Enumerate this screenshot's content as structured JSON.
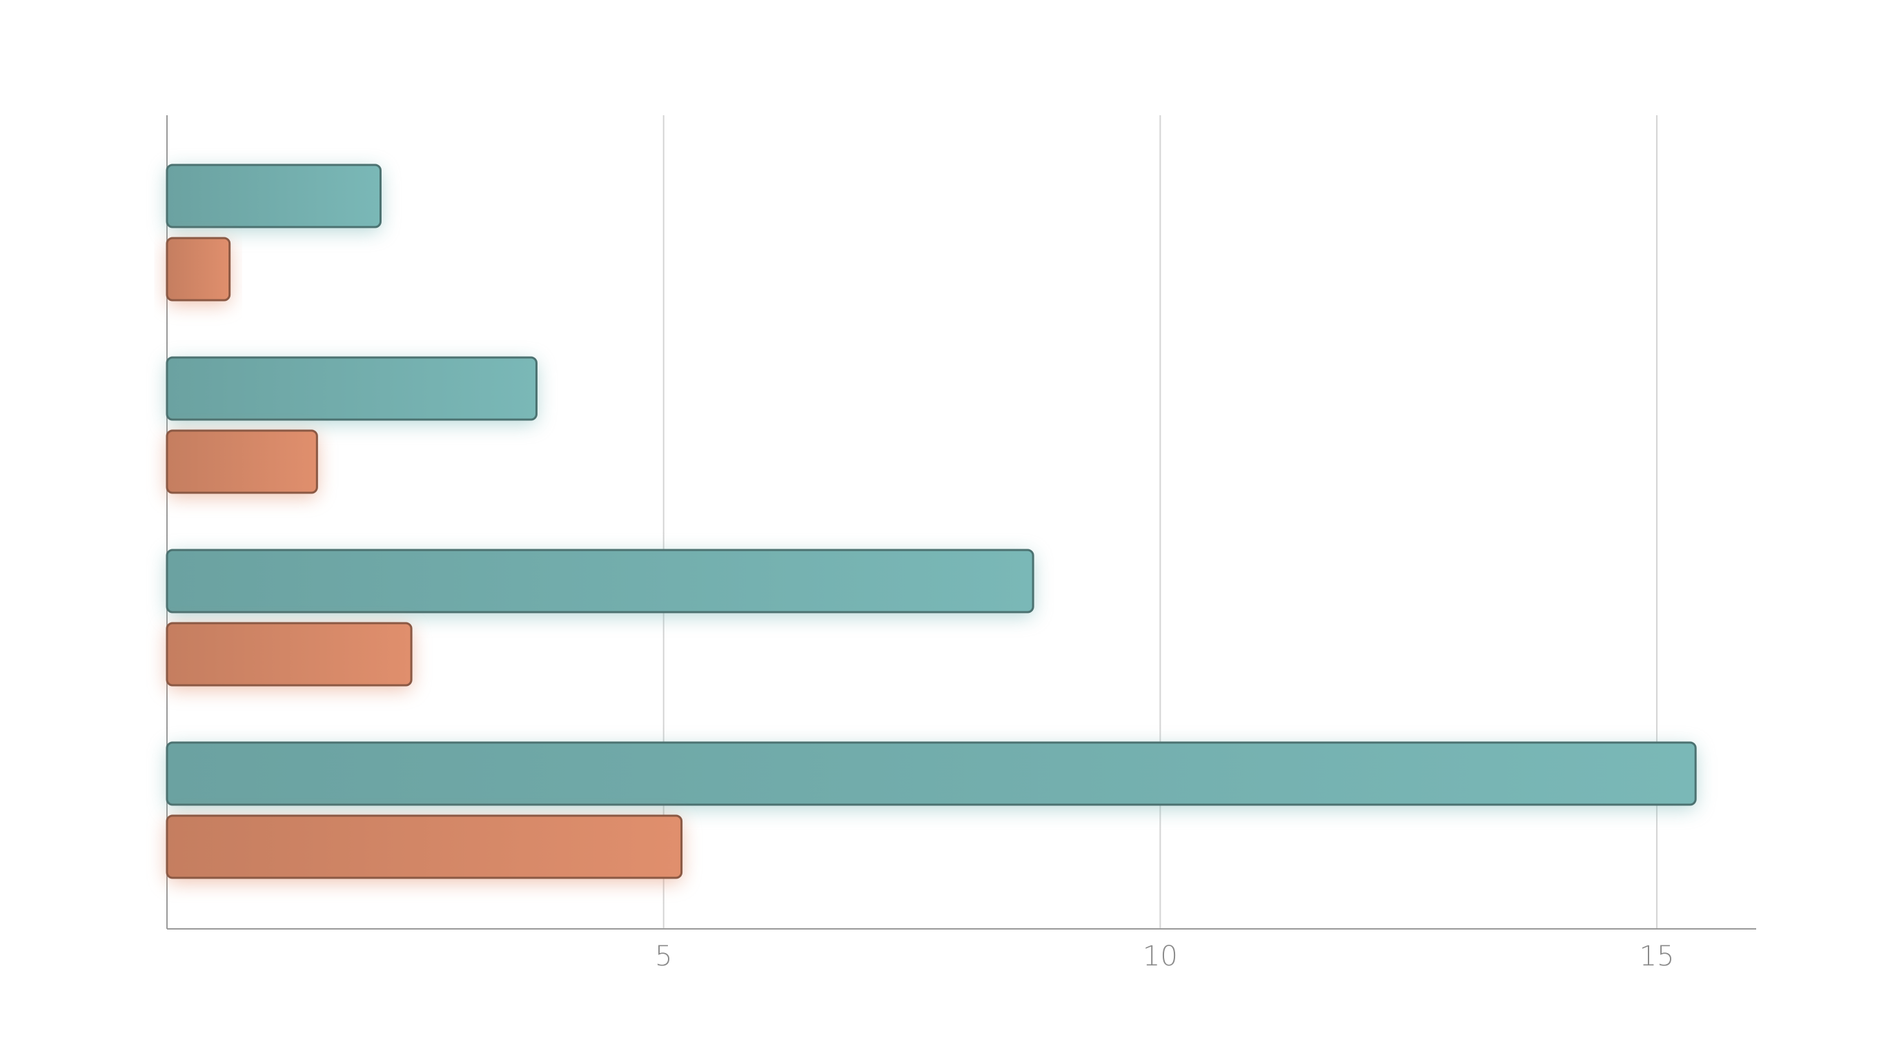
{
  "chart_data": {
    "type": "hbar",
    "categories": [
      null,
      null,
      null,
      null
    ],
    "series": [
      {
        "color": "#7ab8b7",
        "values": [
          2.15,
          3.72,
          8.72,
          15.39
        ]
      },
      {
        "color": "#e08f6d",
        "values": [
          0.63,
          1.51,
          2.46,
          5.18
        ]
      }
    ],
    "xlim": [
      0,
      16
    ],
    "xticks": [
      5,
      10,
      15
    ],
    "grid": true
  }
}
